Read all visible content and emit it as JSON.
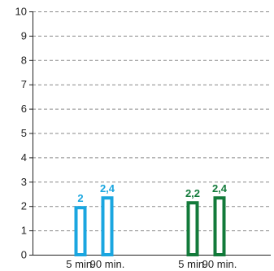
{
  "chart_data": {
    "type": "bar",
    "categories": [
      "5 min.",
      "90 min.",
      "5 min.",
      "90 min."
    ],
    "values": [
      2,
      2.4,
      2.2,
      2.4
    ],
    "data_labels": [
      "2",
      "2,4",
      "2,2",
      "2,4"
    ],
    "groups": [
      {
        "color": "#1aa6e0",
        "indices": [
          0,
          1
        ]
      },
      {
        "color": "#127a3a",
        "indices": [
          2,
          3
        ]
      }
    ],
    "y_ticks": [
      "0",
      "1",
      "2",
      "3",
      "4",
      "5",
      "6",
      "7",
      "8",
      "9",
      "10"
    ],
    "ylim": [
      0,
      10
    ],
    "grid": true,
    "legend": "none",
    "title": "",
    "xlabel": "",
    "ylabel": ""
  }
}
